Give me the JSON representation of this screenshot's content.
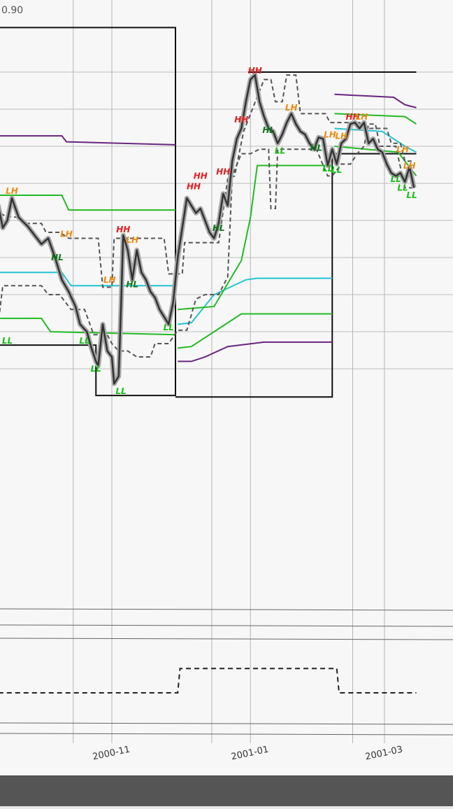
{
  "chart_data": {
    "type": "line",
    "corner_tick": "0.90",
    "x_ticks": [
      "2000-11",
      "2001-01",
      "2001-03"
    ],
    "colors": {
      "price": "#333333",
      "price_shadow": "#a8a8a8",
      "box": "#111111",
      "dashed": "#555555",
      "green": "#22bb22",
      "cyan": "#22c4cf",
      "purple": "#6a2580",
      "hh": "#e02020",
      "lh": "#e98c14",
      "hl": "#11751c",
      "ll": "#16c016"
    },
    "swing_labels": [
      {
        "text": "LH",
        "type": "lh",
        "date": "2000-09-18",
        "price": 0.778
      },
      {
        "text": "LH",
        "type": "lh",
        "date": "2000-10-12",
        "price": 0.749
      },
      {
        "text": "HL",
        "type": "hl",
        "date": "2000-10-08",
        "price": 0.733
      },
      {
        "text": "LL",
        "type": "ll",
        "date": "2000-09-16",
        "price": 0.677
      },
      {
        "text": "LL",
        "type": "ll",
        "date": "2000-10-20",
        "price": 0.677
      },
      {
        "text": "LL",
        "type": "ll",
        "date": "2000-10-25",
        "price": 0.658
      },
      {
        "text": "LL",
        "type": "ll",
        "date": "2000-11-05",
        "price": 0.643
      },
      {
        "text": "HH",
        "type": "hh",
        "date": "2000-11-06",
        "price": 0.752
      },
      {
        "text": "LH",
        "type": "lh",
        "date": "2000-11-10",
        "price": 0.745
      },
      {
        "text": "HL",
        "type": "hl",
        "date": "2000-11-10",
        "price": 0.715
      },
      {
        "text": "LH",
        "type": "lh",
        "date": "2000-10-31",
        "price": 0.718
      },
      {
        "text": "LL",
        "type": "ll",
        "date": "2000-11-26",
        "price": 0.686
      },
      {
        "text": "HH",
        "type": "hh",
        "date": "2000-12-07",
        "price": 0.781
      },
      {
        "text": "HH",
        "type": "hh",
        "date": "2000-12-10",
        "price": 0.788
      },
      {
        "text": "HH",
        "type": "hh",
        "date": "2000-12-20",
        "price": 0.791
      },
      {
        "text": "HL",
        "type": "hl",
        "date": "2000-12-18",
        "price": 0.753
      },
      {
        "text": "HH",
        "type": "hh",
        "date": "2000-12-28",
        "price": 0.826
      },
      {
        "text": "HH",
        "type": "hh",
        "date": "2001-01-03",
        "price": 0.859
      },
      {
        "text": "HL",
        "type": "hl",
        "date": "2001-01-09",
        "price": 0.819
      },
      {
        "text": "LL",
        "type": "ll",
        "date": "2001-01-14",
        "price": 0.805
      },
      {
        "text": "LH",
        "type": "lh",
        "date": "2001-01-19",
        "price": 0.834
      },
      {
        "text": "HL",
        "type": "hl",
        "date": "2001-01-30",
        "price": 0.807
      },
      {
        "text": "LL",
        "type": "ll",
        "date": "2001-02-04",
        "price": 0.793
      },
      {
        "text": "LL",
        "type": "ll",
        "date": "2001-02-08",
        "price": 0.792
      },
      {
        "text": "LH",
        "type": "lh",
        "date": "2001-02-05",
        "price": 0.816
      },
      {
        "text": "LH",
        "type": "lh",
        "date": "2001-02-10",
        "price": 0.815
      },
      {
        "text": "HH",
        "type": "hh",
        "date": "2001-02-15",
        "price": 0.828
      },
      {
        "text": "LH",
        "type": "lh",
        "date": "2001-02-19",
        "price": 0.828
      },
      {
        "text": "LH",
        "type": "lh",
        "date": "2001-03-09",
        "price": 0.806
      },
      {
        "text": "LL",
        "type": "ll",
        "date": "2001-03-06",
        "price": 0.786
      },
      {
        "text": "LL",
        "type": "ll",
        "date": "2001-03-09",
        "price": 0.78
      },
      {
        "text": "LH",
        "type": "lh",
        "date": "2001-03-12",
        "price": 0.795
      },
      {
        "text": "LL",
        "type": "ll",
        "date": "2001-03-13",
        "price": 0.775
      }
    ],
    "price_series": [
      [
        "2000-09-07",
        0.705
      ],
      [
        "2000-09-09",
        0.72
      ],
      [
        "2000-09-12",
        0.77
      ],
      [
        "2000-09-14",
        0.755
      ],
      [
        "2000-09-16",
        0.76
      ],
      [
        "2000-09-18",
        0.775
      ],
      [
        "2000-09-21",
        0.762
      ],
      [
        "2000-09-25",
        0.756
      ],
      [
        "2000-09-28",
        0.75
      ],
      [
        "2000-10-01",
        0.744
      ],
      [
        "2000-10-04",
        0.748
      ],
      [
        "2000-10-07",
        0.735
      ],
      [
        "2000-10-10",
        0.72
      ],
      [
        "2000-10-13",
        0.712
      ],
      [
        "2000-10-16",
        0.702
      ],
      [
        "2000-10-18",
        0.69
      ],
      [
        "2000-10-21",
        0.685
      ],
      [
        "2000-10-23",
        0.674
      ],
      [
        "2000-10-25",
        0.665
      ],
      [
        "2000-10-26",
        0.662
      ],
      [
        "2000-10-28",
        0.69
      ],
      [
        "2000-10-30",
        0.672
      ],
      [
        "2000-11-01",
        0.668
      ],
      [
        "2000-11-02",
        0.65
      ],
      [
        "2000-11-04",
        0.655
      ],
      [
        "2000-11-05",
        0.7
      ],
      [
        "2000-11-06",
        0.75
      ],
      [
        "2000-11-08",
        0.74
      ],
      [
        "2000-11-10",
        0.72
      ],
      [
        "2000-11-12",
        0.74
      ],
      [
        "2000-11-14",
        0.725
      ],
      [
        "2000-11-16",
        0.72
      ],
      [
        "2000-11-18",
        0.712
      ],
      [
        "2000-11-20",
        0.708
      ],
      [
        "2000-11-22",
        0.7
      ],
      [
        "2000-11-24",
        0.695
      ],
      [
        "2000-11-26",
        0.69
      ],
      [
        "2000-11-28",
        0.705
      ],
      [
        "2000-11-30",
        0.735
      ],
      [
        "2000-12-02",
        0.755
      ],
      [
        "2000-12-04",
        0.775
      ],
      [
        "2000-12-06",
        0.77
      ],
      [
        "2000-12-08",
        0.765
      ],
      [
        "2000-12-10",
        0.768
      ],
      [
        "2000-12-12",
        0.76
      ],
      [
        "2000-12-14",
        0.752
      ],
      [
        "2000-12-16",
        0.748
      ],
      [
        "2000-12-18",
        0.758
      ],
      [
        "2000-12-20",
        0.778
      ],
      [
        "2000-12-22",
        0.77
      ],
      [
        "2000-12-24",
        0.8
      ],
      [
        "2000-12-26",
        0.815
      ],
      [
        "2000-12-28",
        0.822
      ],
      [
        "2000-12-30",
        0.84
      ],
      [
        "2001-01-01",
        0.855
      ],
      [
        "2001-01-03",
        0.858
      ],
      [
        "2001-01-05",
        0.84
      ],
      [
        "2001-01-07",
        0.83
      ],
      [
        "2001-01-09",
        0.822
      ],
      [
        "2001-01-11",
        0.82
      ],
      [
        "2001-01-13",
        0.812
      ],
      [
        "2001-01-15",
        0.818
      ],
      [
        "2001-01-17",
        0.826
      ],
      [
        "2001-01-19",
        0.832
      ],
      [
        "2001-01-21",
        0.825
      ],
      [
        "2001-01-23",
        0.82
      ],
      [
        "2001-01-25",
        0.818
      ],
      [
        "2001-01-27",
        0.812
      ],
      [
        "2001-01-29",
        0.808
      ],
      [
        "2001-01-31",
        0.816
      ],
      [
        "2001-02-02",
        0.815
      ],
      [
        "2001-02-04",
        0.797
      ],
      [
        "2001-02-06",
        0.808
      ],
      [
        "2001-02-08",
        0.798
      ],
      [
        "2001-02-10",
        0.812
      ],
      [
        "2001-02-12",
        0.815
      ],
      [
        "2001-02-14",
        0.825
      ],
      [
        "2001-02-16",
        0.826
      ],
      [
        "2001-02-18",
        0.822
      ],
      [
        "2001-02-20",
        0.826
      ],
      [
        "2001-02-22",
        0.812
      ],
      [
        "2001-02-24",
        0.815
      ],
      [
        "2001-02-26",
        0.808
      ],
      [
        "2001-02-28",
        0.806
      ],
      [
        "2001-03-02",
        0.798
      ],
      [
        "2001-03-04",
        0.792
      ],
      [
        "2001-03-06",
        0.79
      ],
      [
        "2001-03-08",
        0.792
      ],
      [
        "2001-03-10",
        0.786
      ],
      [
        "2001-03-12",
        0.796
      ],
      [
        "2001-03-14",
        0.782
      ]
    ],
    "upper_dashed_series": [
      [
        "2000-09-07",
        0.79
      ],
      [
        "2000-09-09",
        0.79
      ],
      [
        "2000-09-10",
        0.765
      ],
      [
        "2000-09-13",
        0.765
      ],
      [
        "2000-09-15",
        0.763
      ],
      [
        "2000-09-21",
        0.762
      ],
      [
        "2000-09-24",
        0.758
      ],
      [
        "2000-10-01",
        0.758
      ],
      [
        "2000-10-03",
        0.752
      ],
      [
        "2000-10-09",
        0.752
      ],
      [
        "2000-10-13",
        0.748
      ],
      [
        "2000-10-26",
        0.748
      ],
      [
        "2000-10-28",
        0.715
      ],
      [
        "2000-11-01",
        0.715
      ],
      [
        "2000-11-02",
        0.748
      ],
      [
        "2000-11-24",
        0.748
      ],
      [
        "2000-11-26",
        0.724
      ],
      [
        "2000-12-02",
        0.724
      ],
      [
        "2000-12-03",
        0.745
      ],
      [
        "2000-12-18",
        0.745
      ],
      [
        "2000-12-22",
        0.788
      ],
      [
        "2000-12-25",
        0.79
      ],
      [
        "2000-12-29",
        0.82
      ],
      [
        "2001-01-07",
        0.855
      ],
      [
        "2001-01-10",
        0.855
      ],
      [
        "2001-01-12",
        0.84
      ],
      [
        "2001-01-15",
        0.84
      ],
      [
        "2001-01-17",
        0.858
      ],
      [
        "2001-01-21",
        0.858
      ],
      [
        "2001-01-23",
        0.832
      ],
      [
        "2001-02-03",
        0.832
      ],
      [
        "2001-02-05",
        0.826
      ],
      [
        "2001-02-18",
        0.826
      ],
      [
        "2001-02-20",
        0.822
      ],
      [
        "2001-03-02",
        0.822
      ],
      [
        "2001-03-04",
        0.812
      ],
      [
        "2001-03-08",
        0.812
      ],
      [
        "2001-03-10",
        0.8
      ],
      [
        "2001-03-14",
        0.8
      ]
    ],
    "lower_dashed_series": [
      [
        "2000-09-07",
        0.652
      ],
      [
        "2000-09-10",
        0.665
      ],
      [
        "2000-09-14",
        0.716
      ],
      [
        "2000-09-21",
        0.716
      ],
      [
        "2000-09-24",
        0.716
      ],
      [
        "2000-10-01",
        0.716
      ],
      [
        "2000-10-04",
        0.71
      ],
      [
        "2000-10-09",
        0.71
      ],
      [
        "2000-10-14",
        0.7
      ],
      [
        "2000-10-20",
        0.7
      ],
      [
        "2000-10-24",
        0.683
      ],
      [
        "2000-10-30",
        0.683
      ],
      [
        "2000-11-01",
        0.677
      ],
      [
        "2000-11-04",
        0.672
      ],
      [
        "2000-11-08",
        0.672
      ],
      [
        "2000-11-12",
        0.668
      ],
      [
        "2000-11-18",
        0.668
      ],
      [
        "2000-11-20",
        0.677
      ],
      [
        "2000-11-26",
        0.677
      ],
      [
        "2000-11-30",
        0.686
      ],
      [
        "2000-12-04",
        0.686
      ],
      [
        "2000-12-08",
        0.707
      ],
      [
        "2000-12-12",
        0.71
      ],
      [
        "2000-12-18",
        0.71
      ],
      [
        "2000-12-22",
        0.722
      ],
      [
        "2000-12-24",
        0.79
      ],
      [
        "2000-12-28",
        0.805
      ],
      [
        "2001-01-01",
        0.805
      ],
      [
        "2001-01-05",
        0.808
      ],
      [
        "2001-01-09",
        0.808
      ],
      [
        "2001-01-10",
        0.768
      ],
      [
        "2001-01-12",
        0.768
      ],
      [
        "2001-01-13",
        0.808
      ],
      [
        "2001-01-30",
        0.808
      ],
      [
        "2001-02-04",
        0.79
      ],
      [
        "2001-02-06",
        0.79
      ],
      [
        "2001-02-10",
        0.798
      ],
      [
        "2001-02-14",
        0.798
      ],
      [
        "2001-02-17",
        0.805
      ],
      [
        "2001-02-20",
        0.81
      ],
      [
        "2001-02-22",
        0.825
      ],
      [
        "2001-02-25",
        0.825
      ],
      [
        "2001-02-27",
        0.81
      ],
      [
        "2001-03-06",
        0.81
      ],
      [
        "2001-03-10",
        0.782
      ],
      [
        "2001-03-14",
        0.782
      ]
    ],
    "right_band_dashed": [
      [
        "2000-09-01",
        0.626
      ],
      [
        "2000-11-30",
        0.626
      ],
      [
        "2000-12-01",
        0.632
      ],
      [
        "2001-02-08",
        0.632
      ],
      [
        "2001-02-09",
        0.626
      ],
      [
        "2001-03-15",
        0.626
      ]
    ]
  }
}
